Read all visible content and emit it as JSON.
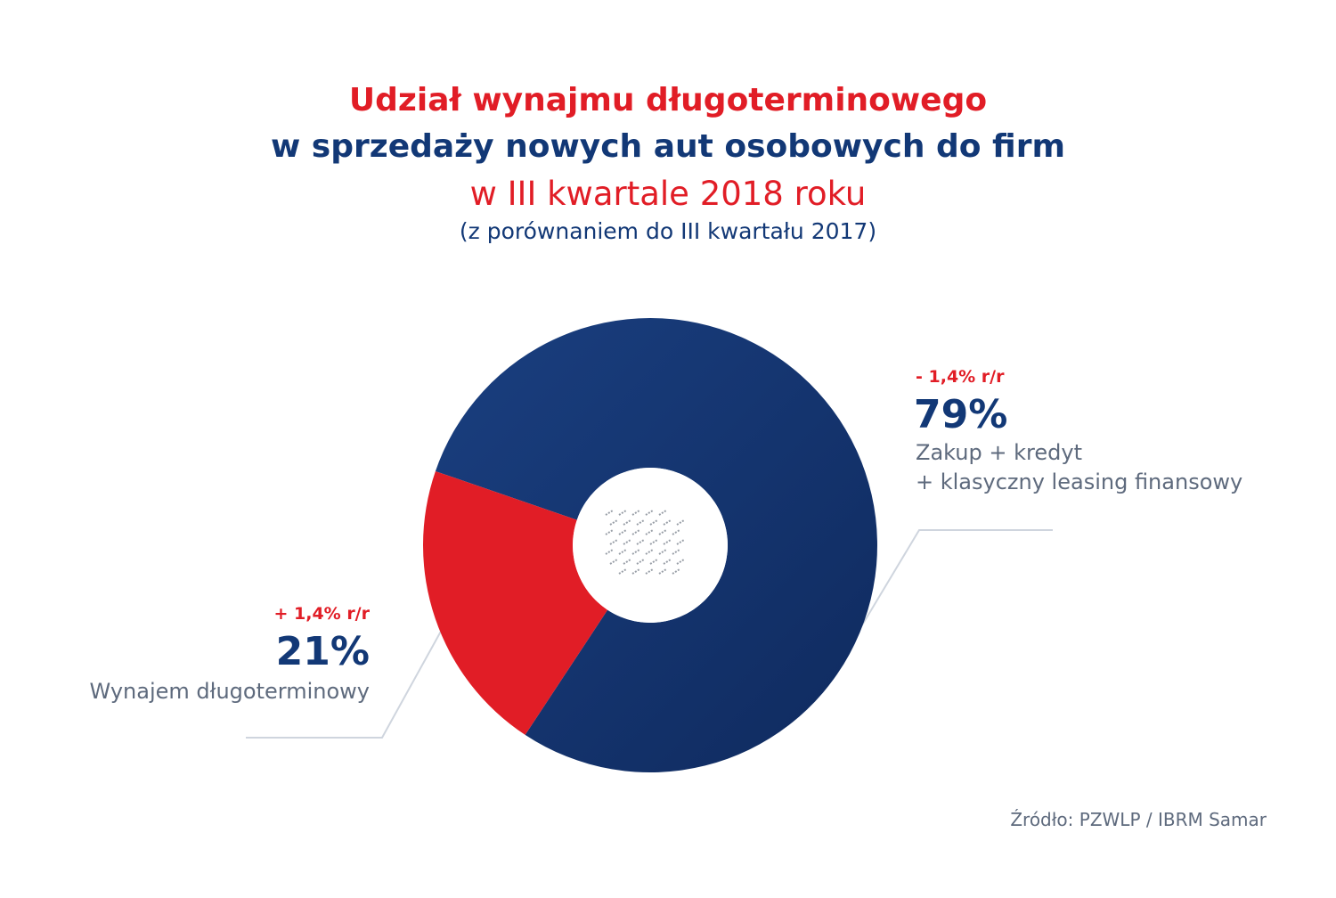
{
  "header": {
    "line1": "Udział wynajmu długoterminowego",
    "line2": "w sprzedaży nowych aut osobowych do firm",
    "line3": "w III kwartale 2018 roku",
    "line4": "(z porównaniem do III kwartału 2017)"
  },
  "chart_data": {
    "type": "pie",
    "series": [
      {
        "value": 79,
        "label": "79%",
        "change": "- 1,4% r/r",
        "desc1": "Zakup + kredyt",
        "desc2": "+ klasyczny leasing finansowy",
        "color": "#14326d"
      },
      {
        "value": 21,
        "label": "21%",
        "change": "+ 1,4% r/r",
        "desc1": "Wynajem długoterminowy",
        "color": "#e11d26"
      }
    ]
  },
  "source": "Źródło: PZWLP / IBRM Samar",
  "colors": {
    "red": "#e11d26",
    "navy": "#123876",
    "gray": "#5e6a7d"
  }
}
